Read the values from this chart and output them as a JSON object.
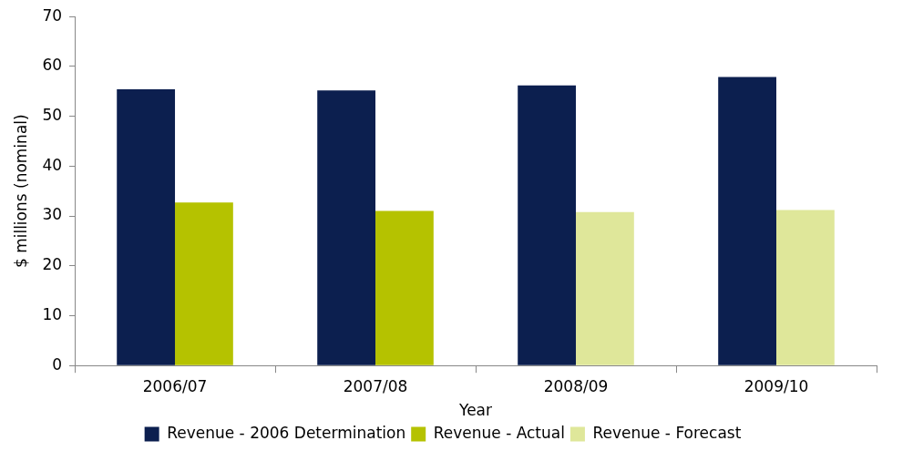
{
  "chart_data": {
    "type": "bar",
    "xlabel": "Year",
    "ylabel": "$ millions (nominal)",
    "categories": [
      "2006/07",
      "2007/08",
      "2008/09",
      "2009/10"
    ],
    "series": [
      {
        "name": "Revenue - 2006 Determination",
        "color": "#0c1f4f",
        "values": [
          55.4,
          55.2,
          56.2,
          57.9
        ]
      },
      {
        "name": "Revenue - Actual",
        "color": "#b5c200",
        "values": [
          32.7,
          31.0,
          null,
          null
        ]
      },
      {
        "name": "Revenue - Forecast",
        "color": "#dfe79a",
        "values": [
          null,
          null,
          30.8,
          31.2
        ]
      }
    ],
    "ylim": [
      0,
      70
    ],
    "yticks": [
      0,
      10,
      20,
      30,
      40,
      50,
      60,
      70
    ],
    "grid": false,
    "legend": "bottom"
  }
}
